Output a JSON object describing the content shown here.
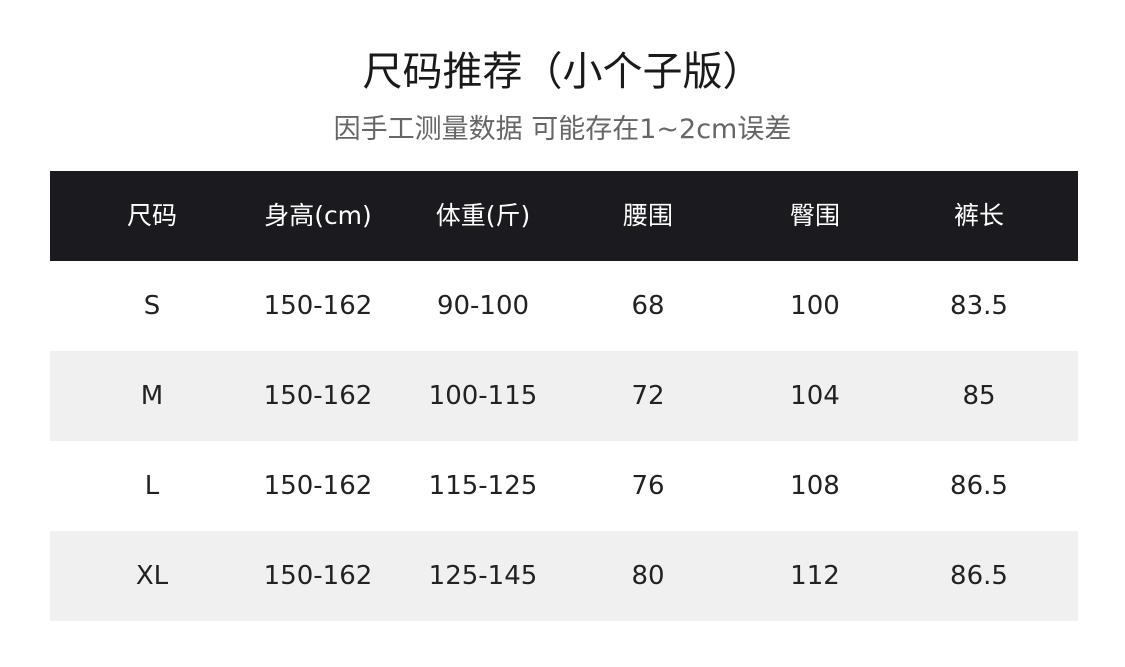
{
  "title": "尺码推荐（小个子版）",
  "subtitle": "因手工测量数据 可能存在1~2cm误差",
  "colors": {
    "header_bg": "#1a1a1f",
    "header_text": "#ffffff",
    "alt_row_bg": "#f0f0f0"
  },
  "table": {
    "headers": [
      "尺码",
      "身高(cm)",
      "体重(斤)",
      "腰围",
      "臀围",
      "裤长"
    ],
    "rows": [
      [
        "S",
        "150-162",
        "90-100",
        "68",
        "100",
        "83.5"
      ],
      [
        "M",
        "150-162",
        "100-115",
        "72",
        "104",
        "85"
      ],
      [
        "L",
        "150-162",
        "115-125",
        "76",
        "108",
        "86.5"
      ],
      [
        "XL",
        "150-162",
        "125-145",
        "80",
        "112",
        "86.5"
      ]
    ]
  }
}
